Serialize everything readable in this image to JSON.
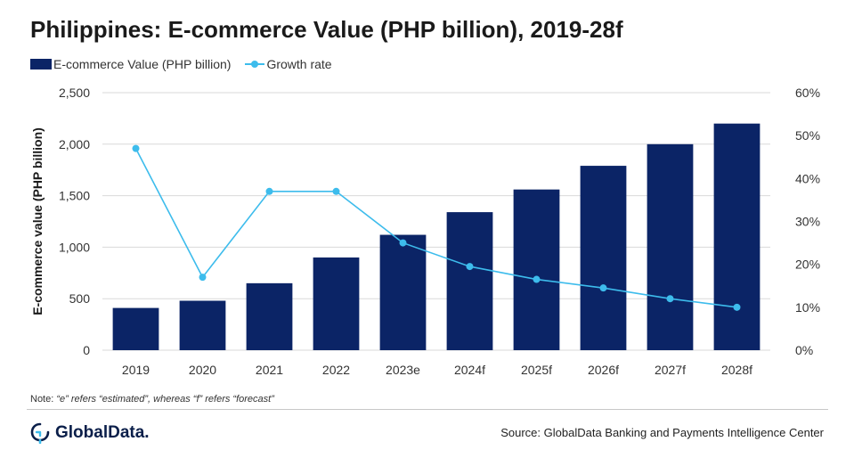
{
  "title": "Philippines: E-commerce Value (PHP billion), 2019-28f",
  "legend": {
    "bar_label": "E-commerce Value (PHP billion)",
    "line_label": "Growth rate"
  },
  "note": {
    "prefix": "Note: ",
    "text": "“e” refers “estimated”, whereas “f” refers “forecast”"
  },
  "brand": {
    "name": "GlobalData."
  },
  "source": "Source: GlobalData Banking and Payments Intelligence Center",
  "colors": {
    "bar": "#0b2466",
    "line": "#3dbcec",
    "grid": "#d9d9d9",
    "axis_text": "#333333"
  },
  "chart_data": {
    "type": "bar",
    "title": "Philippines: E-commerce Value (PHP billion), 2019-28f",
    "categories": [
      "2019",
      "2020",
      "2021",
      "2022",
      "2023e",
      "2024f",
      "2025f",
      "2026f",
      "2027f",
      "2028f"
    ],
    "series": [
      {
        "name": "E-commerce Value (PHP billion)",
        "type": "bar",
        "axis": "left",
        "values": [
          410,
          480,
          650,
          900,
          1120,
          1340,
          1560,
          1790,
          2000,
          2200
        ]
      },
      {
        "name": "Growth rate",
        "type": "line",
        "axis": "right",
        "values": [
          47,
          17,
          37,
          37,
          25,
          19.5,
          16.5,
          14.5,
          12,
          10
        ]
      }
    ],
    "ylabel": "E-commerce value (PHP billion)",
    "ylim": [
      0,
      2500
    ],
    "yticks": [
      "0",
      "500",
      "1,000",
      "1,500",
      "2,000",
      "2,500"
    ],
    "ylim_right": [
      0,
      60
    ],
    "yticks_right": [
      "0%",
      "10%",
      "20%",
      "30%",
      "40%",
      "50%",
      "60%"
    ],
    "grid": true,
    "legend_position": "top-left"
  }
}
